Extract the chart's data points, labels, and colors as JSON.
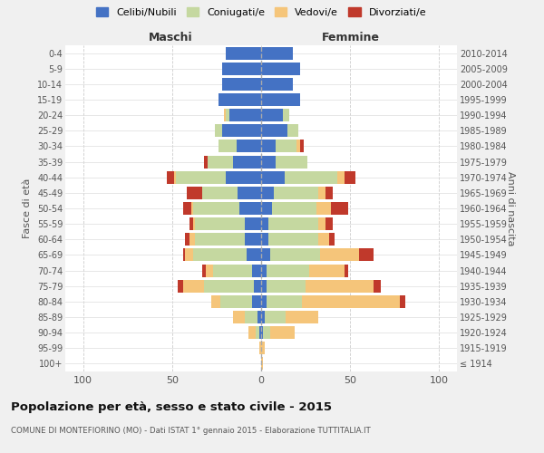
{
  "age_groups": [
    "100+",
    "95-99",
    "90-94",
    "85-89",
    "80-84",
    "75-79",
    "70-74",
    "65-69",
    "60-64",
    "55-59",
    "50-54",
    "45-49",
    "40-44",
    "35-39",
    "30-34",
    "25-29",
    "20-24",
    "15-19",
    "10-14",
    "5-9",
    "0-4"
  ],
  "birth_years": [
    "≤ 1914",
    "1915-1919",
    "1920-1924",
    "1925-1929",
    "1930-1934",
    "1935-1939",
    "1940-1944",
    "1945-1949",
    "1950-1954",
    "1955-1959",
    "1960-1964",
    "1965-1969",
    "1970-1974",
    "1975-1979",
    "1980-1984",
    "1985-1989",
    "1990-1994",
    "1995-1999",
    "2000-2004",
    "2005-2009",
    "2010-2014"
  ],
  "maschi_celibe": [
    0,
    0,
    1,
    2,
    5,
    4,
    5,
    8,
    9,
    9,
    12,
    13,
    20,
    16,
    14,
    22,
    18,
    24,
    22,
    22,
    20
  ],
  "maschi_coniugato": [
    0,
    0,
    2,
    7,
    18,
    28,
    22,
    30,
    28,
    28,
    26,
    20,
    28,
    14,
    10,
    4,
    2,
    0,
    0,
    0,
    0
  ],
  "maschi_vedovo": [
    0,
    1,
    4,
    7,
    5,
    12,
    4,
    5,
    3,
    1,
    1,
    0,
    1,
    0,
    0,
    0,
    1,
    0,
    0,
    0,
    0
  ],
  "maschi_divorziato": [
    0,
    0,
    0,
    0,
    0,
    3,
    2,
    1,
    3,
    2,
    5,
    9,
    4,
    2,
    0,
    0,
    0,
    0,
    0,
    0,
    0
  ],
  "femmine_celibe": [
    0,
    0,
    1,
    2,
    3,
    3,
    3,
    5,
    4,
    4,
    6,
    7,
    13,
    8,
    8,
    15,
    12,
    22,
    18,
    22,
    18
  ],
  "femmine_coniugata": [
    0,
    0,
    4,
    12,
    20,
    22,
    24,
    28,
    28,
    28,
    25,
    25,
    30,
    18,
    12,
    6,
    4,
    0,
    0,
    0,
    0
  ],
  "femmine_vedova": [
    1,
    2,
    14,
    18,
    55,
    38,
    20,
    22,
    6,
    4,
    8,
    4,
    4,
    0,
    2,
    0,
    0,
    0,
    0,
    0,
    0
  ],
  "femmine_divorziata": [
    0,
    0,
    0,
    0,
    3,
    4,
    2,
    8,
    3,
    4,
    10,
    4,
    6,
    0,
    2,
    0,
    0,
    0,
    0,
    0,
    0
  ],
  "color_celibe": "#4472c4",
  "color_coniugato": "#c5d8a0",
  "color_vedovo": "#f5c57a",
  "color_divorziato": "#c0392b",
  "title": "Popolazione per età, sesso e stato civile - 2015",
  "subtitle": "COMUNE DI MONTEFIORINO (MO) - Dati ISTAT 1° gennaio 2015 - Elaborazione TUTTITALIA.IT",
  "ylabel_left": "Fasce di età",
  "ylabel_right": "Anni di nascita",
  "xlabel_maschi": "Maschi",
  "xlabel_femmine": "Femmine",
  "xlim": 110,
  "background_color": "#f0f0f0",
  "plot_background": "#ffffff"
}
